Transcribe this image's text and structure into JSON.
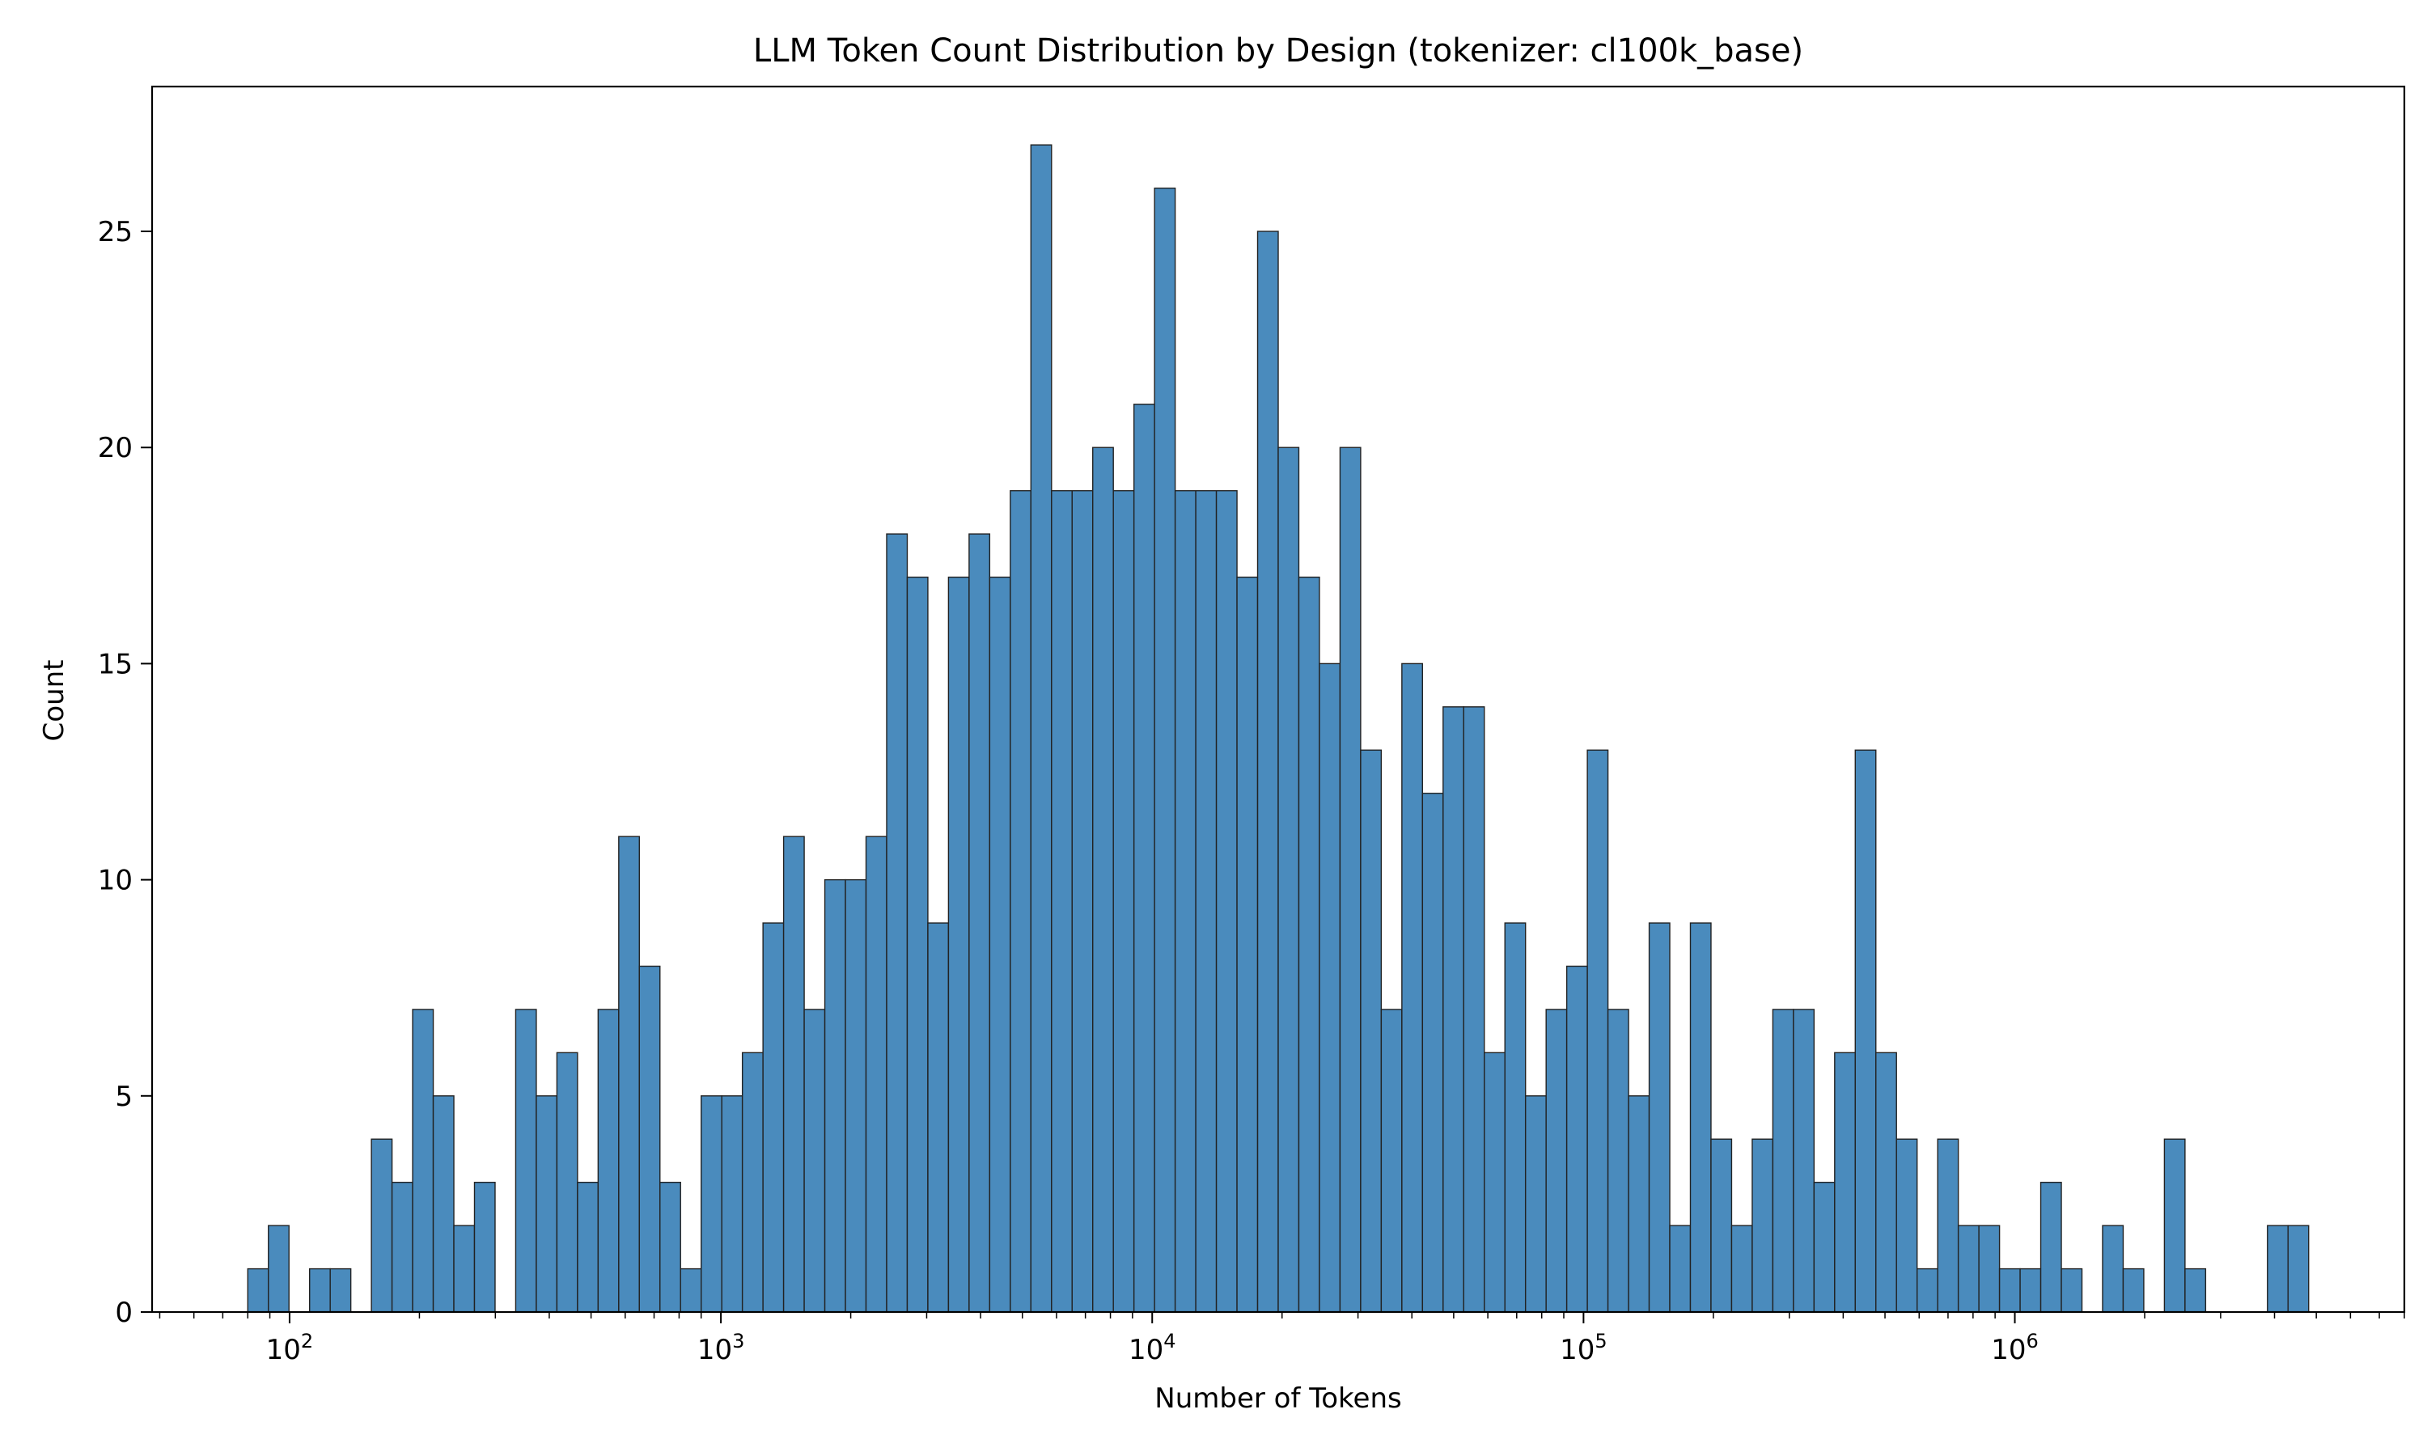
{
  "chart_data": {
    "type": "bar",
    "title": "LLM Token Count Distribution by Design (tokenizer: cl100k_base)",
    "xlabel": "Number of Tokens",
    "ylabel": "Count",
    "x_scale": "log",
    "xlim": [
      48,
      8000000
    ],
    "ylim": [
      0,
      28.35
    ],
    "x_ticks": [
      {
        "value": 100,
        "base": "10",
        "exp": "2"
      },
      {
        "value": 1000,
        "base": "10",
        "exp": "3"
      },
      {
        "value": 10000,
        "base": "10",
        "exp": "4"
      },
      {
        "value": 100000,
        "base": "10",
        "exp": "5"
      },
      {
        "value": 1000000,
        "base": "10",
        "exp": "6"
      }
    ],
    "y_ticks": [
      {
        "value": 0,
        "label": "0"
      },
      {
        "value": 5,
        "label": "5"
      },
      {
        "value": 10,
        "label": "10"
      },
      {
        "value": 15,
        "label": "15"
      },
      {
        "value": 20,
        "label": "20"
      },
      {
        "value": 25,
        "label": "25"
      }
    ],
    "bar_color": "#4a8bbd",
    "bar_edge_color": "#222222",
    "bin_start": 80,
    "bin_end": 4800000,
    "counts": [
      1,
      2,
      0,
      1,
      1,
      0,
      4,
      3,
      7,
      5,
      2,
      3,
      0,
      7,
      5,
      6,
      3,
      7,
      11,
      8,
      3,
      1,
      5,
      5,
      6,
      9,
      11,
      7,
      10,
      10,
      11,
      18,
      17,
      9,
      17,
      18,
      17,
      19,
      27,
      19,
      19,
      20,
      19,
      21,
      26,
      19,
      19,
      19,
      17,
      25,
      20,
      17,
      15,
      20,
      13,
      7,
      15,
      12,
      14,
      14,
      6,
      9,
      5,
      7,
      8,
      13,
      7,
      5,
      9,
      2,
      9,
      4,
      2,
      4,
      7,
      7,
      3,
      6,
      13,
      6,
      4,
      1,
      4,
      2,
      2,
      1,
      1,
      3,
      1,
      0,
      2,
      1,
      0,
      4,
      1,
      0,
      0,
      0,
      2,
      2
    ]
  }
}
